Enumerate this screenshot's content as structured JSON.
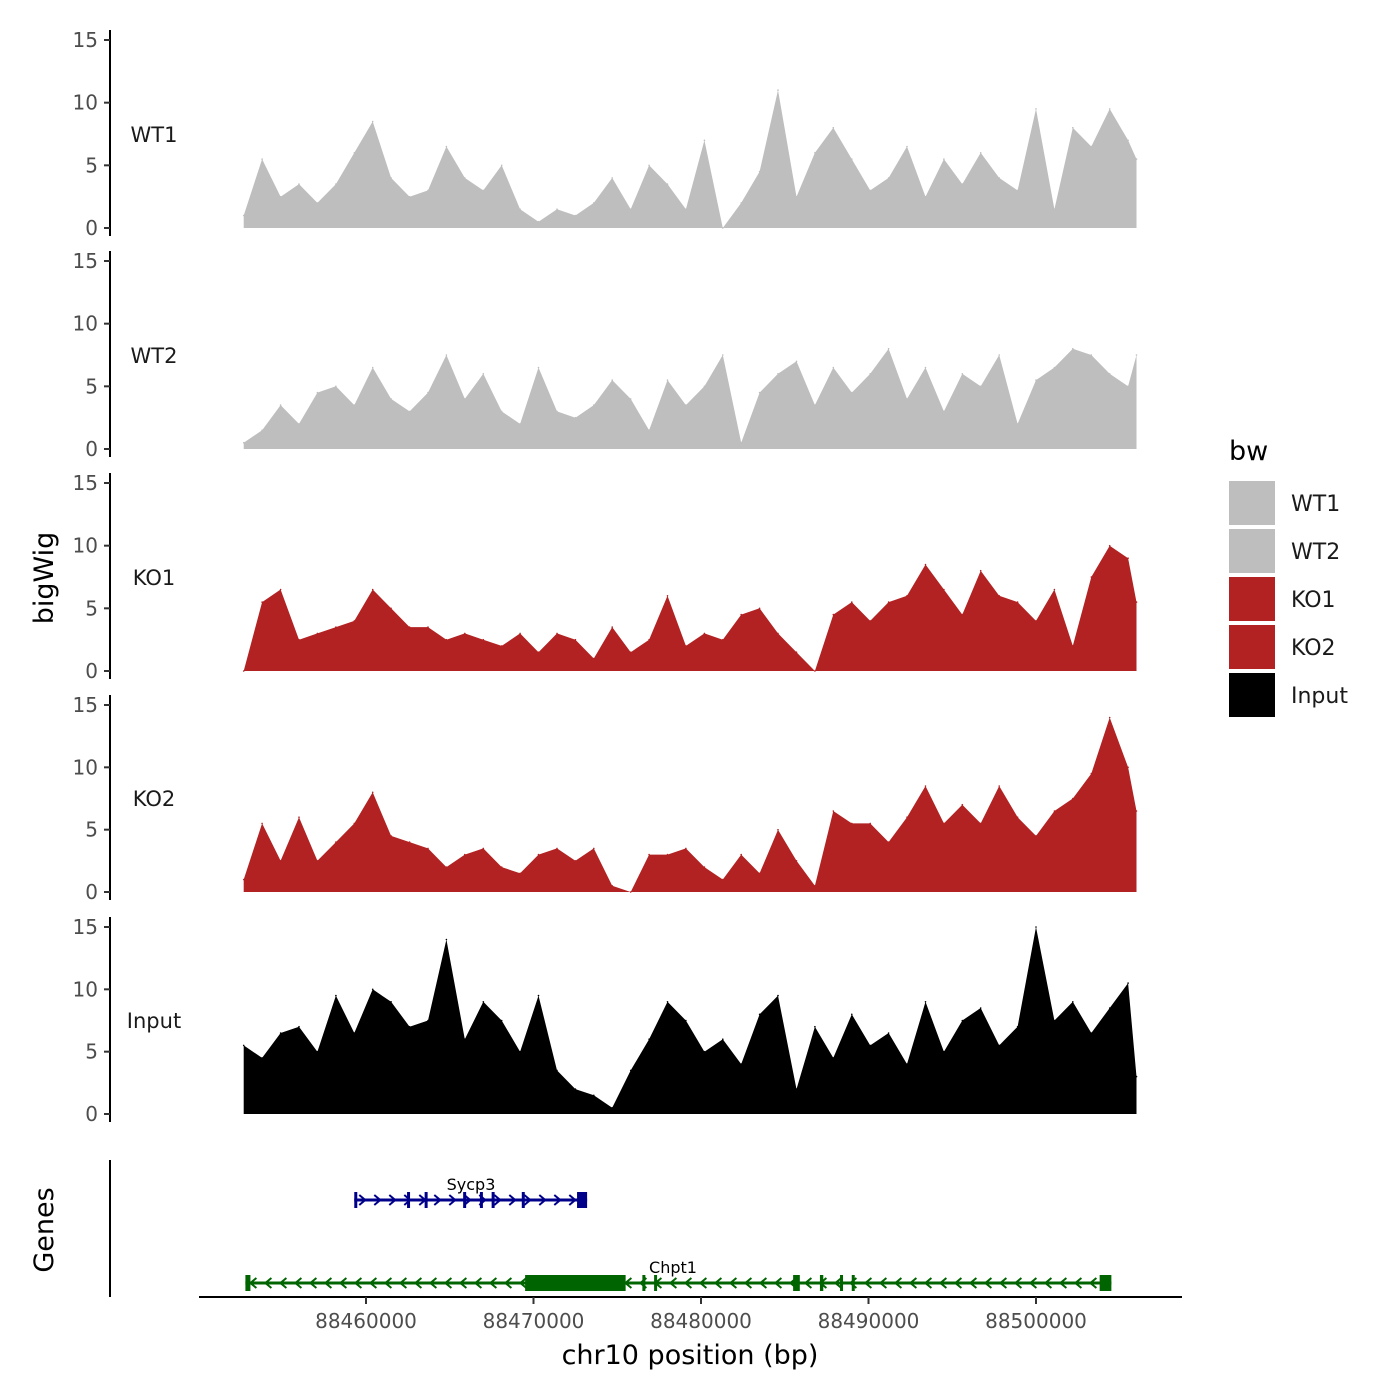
{
  "chart_data": {
    "type": "area",
    "title": "",
    "xlabel": "chr10 position (bp)",
    "ylabel": "bigWig",
    "genes_ylabel": "Genes",
    "x_range": [
      88452700,
      88506000
    ],
    "x_ticks": [
      88460000,
      88470000,
      88480000,
      88490000,
      88500000
    ],
    "x_tick_labels": [
      "88460000",
      "88470000",
      "88480000",
      "88490000",
      "88500000"
    ],
    "ylim": [
      0,
      15
    ],
    "y_ticks": [
      0,
      5,
      10,
      15
    ],
    "y_tick_labels": [
      "0",
      "5",
      "10",
      "15"
    ],
    "legend": {
      "title": "bw",
      "position": "right",
      "entries": [
        {
          "label": "WT1",
          "color": "#BEBEBE"
        },
        {
          "label": "WT2",
          "color": "#BEBEBE"
        },
        {
          "label": "KO1",
          "color": "#B22222"
        },
        {
          "label": "KO2",
          "color": "#B22222"
        },
        {
          "label": "Input",
          "color": "#000000"
        }
      ]
    },
    "series": [
      {
        "name": "WT1",
        "color": "#BEBEBE",
        "x": [
          88452700,
          88453800,
          88454900,
          88456000,
          88457100,
          88458200,
          88459300,
          88460400,
          88461500,
          88462600,
          88463700,
          88464800,
          88465900,
          88467000,
          88468100,
          88469200,
          88470300,
          88471400,
          88472500,
          88473600,
          88474700,
          88475800,
          88476900,
          88478000,
          88479100,
          88480200,
          88481300,
          88482400,
          88483500,
          88484600,
          88485700,
          88486800,
          88487900,
          88489000,
          88490100,
          88491200,
          88492300,
          88493400,
          88494500,
          88495600,
          88496700,
          88497800,
          88498900,
          88500000,
          88501100,
          88502200,
          88503300,
          88504400,
          88505500,
          88506000
        ],
        "values": [
          1,
          5.5,
          2.5,
          3.5,
          2,
          3.5,
          6,
          8.5,
          4,
          2.5,
          3,
          6.5,
          4,
          3,
          5,
          1.5,
          0.5,
          1.5,
          1,
          2,
          4,
          1.5,
          5,
          3.5,
          1.5,
          7,
          0,
          2,
          4.5,
          11,
          2.5,
          6,
          8,
          5.5,
          3,
          4,
          6.5,
          2.5,
          5.5,
          3.5,
          6,
          4,
          3,
          9.5,
          1.5,
          8,
          6.5,
          9.5,
          7,
          5.5
        ]
      },
      {
        "name": "WT2",
        "color": "#BEBEBE",
        "x": [
          88452700,
          88453800,
          88454900,
          88456000,
          88457100,
          88458200,
          88459300,
          88460400,
          88461500,
          88462600,
          88463700,
          88464800,
          88465900,
          88467000,
          88468100,
          88469200,
          88470300,
          88471400,
          88472500,
          88473600,
          88474700,
          88475800,
          88476900,
          88478000,
          88479100,
          88480200,
          88481300,
          88482400,
          88483500,
          88484600,
          88485700,
          88486800,
          88487900,
          88489000,
          88490100,
          88491200,
          88492300,
          88493400,
          88494500,
          88495600,
          88496700,
          88497800,
          88498900,
          88500000,
          88501100,
          88502200,
          88503300,
          88504400,
          88505500,
          88506000
        ],
        "values": [
          0.5,
          1.5,
          3.5,
          2,
          4.5,
          5,
          3.5,
          6.5,
          4,
          3,
          4.5,
          7.5,
          4,
          6,
          3,
          2,
          6.5,
          3,
          2.5,
          3.5,
          5.5,
          4,
          1.5,
          5.5,
          3.5,
          5,
          7.5,
          0.5,
          4.5,
          6,
          7,
          3.5,
          6.5,
          4.5,
          6,
          8,
          4,
          6.5,
          3,
          6,
          5,
          7.5,
          2,
          5.5,
          6.5,
          8,
          7.5,
          6,
          5,
          7.5
        ]
      },
      {
        "name": "KO1",
        "color": "#B22222",
        "x": [
          88452700,
          88453800,
          88454900,
          88456000,
          88457100,
          88458200,
          88459300,
          88460400,
          88461500,
          88462600,
          88463700,
          88464800,
          88465900,
          88467000,
          88468100,
          88469200,
          88470300,
          88471400,
          88472500,
          88473600,
          88474700,
          88475800,
          88476900,
          88478000,
          88479100,
          88480200,
          88481300,
          88482400,
          88483500,
          88484600,
          88485700,
          88486800,
          88487900,
          88489000,
          88490100,
          88491200,
          88492300,
          88493400,
          88494500,
          88495600,
          88496700,
          88497800,
          88498900,
          88500000,
          88501100,
          88502200,
          88503300,
          88504400,
          88505500,
          88506000
        ],
        "values": [
          0,
          5.5,
          6.5,
          2.5,
          3,
          3.5,
          4,
          6.5,
          5,
          3.5,
          3.5,
          2.5,
          3,
          2.5,
          2,
          3,
          1.5,
          3,
          2.5,
          1,
          3.5,
          1.5,
          2.5,
          6,
          2,
          3,
          2.5,
          4.5,
          5,
          3,
          1.5,
          0,
          4.5,
          5.5,
          4,
          5.5,
          6,
          8.5,
          6.5,
          4.5,
          8,
          6,
          5.5,
          4,
          6.5,
          2,
          7.5,
          10,
          9,
          5.5
        ]
      },
      {
        "name": "KO2",
        "color": "#B22222",
        "x": [
          88452700,
          88453800,
          88454900,
          88456000,
          88457100,
          88458200,
          88459300,
          88460400,
          88461500,
          88462600,
          88463700,
          88464800,
          88465900,
          88467000,
          88468100,
          88469200,
          88470300,
          88471400,
          88472500,
          88473600,
          88474700,
          88475800,
          88476900,
          88478000,
          88479100,
          88480200,
          88481300,
          88482400,
          88483500,
          88484600,
          88485700,
          88486800,
          88487900,
          88489000,
          88490100,
          88491200,
          88492300,
          88493400,
          88494500,
          88495600,
          88496700,
          88497800,
          88498900,
          88500000,
          88501100,
          88502200,
          88503300,
          88504400,
          88505500,
          88506000
        ],
        "values": [
          1,
          5.5,
          2.5,
          6,
          2.5,
          4,
          5.5,
          8,
          4.5,
          4,
          3.5,
          2,
          3,
          3.5,
          2,
          1.5,
          3,
          3.5,
          2.5,
          3.5,
          0.5,
          0,
          3,
          3,
          3.5,
          2,
          1,
          3,
          1.5,
          5,
          2.5,
          0.5,
          6.5,
          5.5,
          5.5,
          4,
          6,
          8.5,
          5.5,
          7,
          5.5,
          8.5,
          6,
          4.5,
          6.5,
          7.5,
          9.5,
          14,
          10,
          6.5
        ]
      },
      {
        "name": "Input",
        "color": "#000000",
        "x": [
          88452700,
          88453800,
          88454900,
          88456000,
          88457100,
          88458200,
          88459300,
          88460400,
          88461500,
          88462600,
          88463700,
          88464800,
          88465900,
          88467000,
          88468100,
          88469200,
          88470300,
          88471400,
          88472500,
          88473600,
          88474700,
          88475800,
          88476900,
          88478000,
          88479100,
          88480200,
          88481300,
          88482400,
          88483500,
          88484600,
          88485700,
          88486800,
          88487900,
          88489000,
          88490100,
          88491200,
          88492300,
          88493400,
          88494500,
          88495600,
          88496700,
          88497800,
          88498900,
          88500000,
          88501100,
          88502200,
          88503300,
          88504400,
          88505500,
          88506000
        ],
        "values": [
          5.5,
          4.5,
          6.5,
          7,
          5,
          9.5,
          6.5,
          10,
          9,
          7,
          7.5,
          14,
          6,
          9,
          7.5,
          5,
          9.5,
          3.5,
          2,
          1.5,
          0.5,
          3.5,
          6,
          9,
          7.5,
          5,
          6,
          4,
          8,
          9.5,
          2,
          7,
          4.5,
          8,
          5.5,
          6.5,
          4,
          9,
          5,
          7.5,
          8.5,
          5.5,
          7,
          15,
          7.5,
          9,
          6.5,
          8.5,
          10.5,
          3
        ]
      }
    ],
    "genes": [
      {
        "name": "Sycp3",
        "color": "#00008B",
        "start": 88459300,
        "end": 88473200,
        "strand": "+",
        "exons": [
          [
            88459300,
            88459450
          ],
          [
            88462450,
            88462600
          ],
          [
            88463500,
            88463650
          ],
          [
            88465800,
            88465950
          ],
          [
            88466800,
            88466950
          ],
          [
            88467500,
            88467650
          ],
          [
            88469300,
            88469450
          ],
          [
            88472600,
            88473200
          ]
        ]
      },
      {
        "name": "Chpt1",
        "color": "#006400",
        "start": 88452800,
        "end": 88504500,
        "strand": "-",
        "exons": [
          [
            88452800,
            88453100
          ],
          [
            88469500,
            88475500
          ],
          [
            88476500,
            88476650
          ],
          [
            88477200,
            88477350
          ],
          [
            88485500,
            88485900
          ],
          [
            88487100,
            88487300
          ],
          [
            88488300,
            88488450
          ],
          [
            88489000,
            88489150
          ],
          [
            88503800,
            88504500
          ]
        ]
      }
    ]
  }
}
